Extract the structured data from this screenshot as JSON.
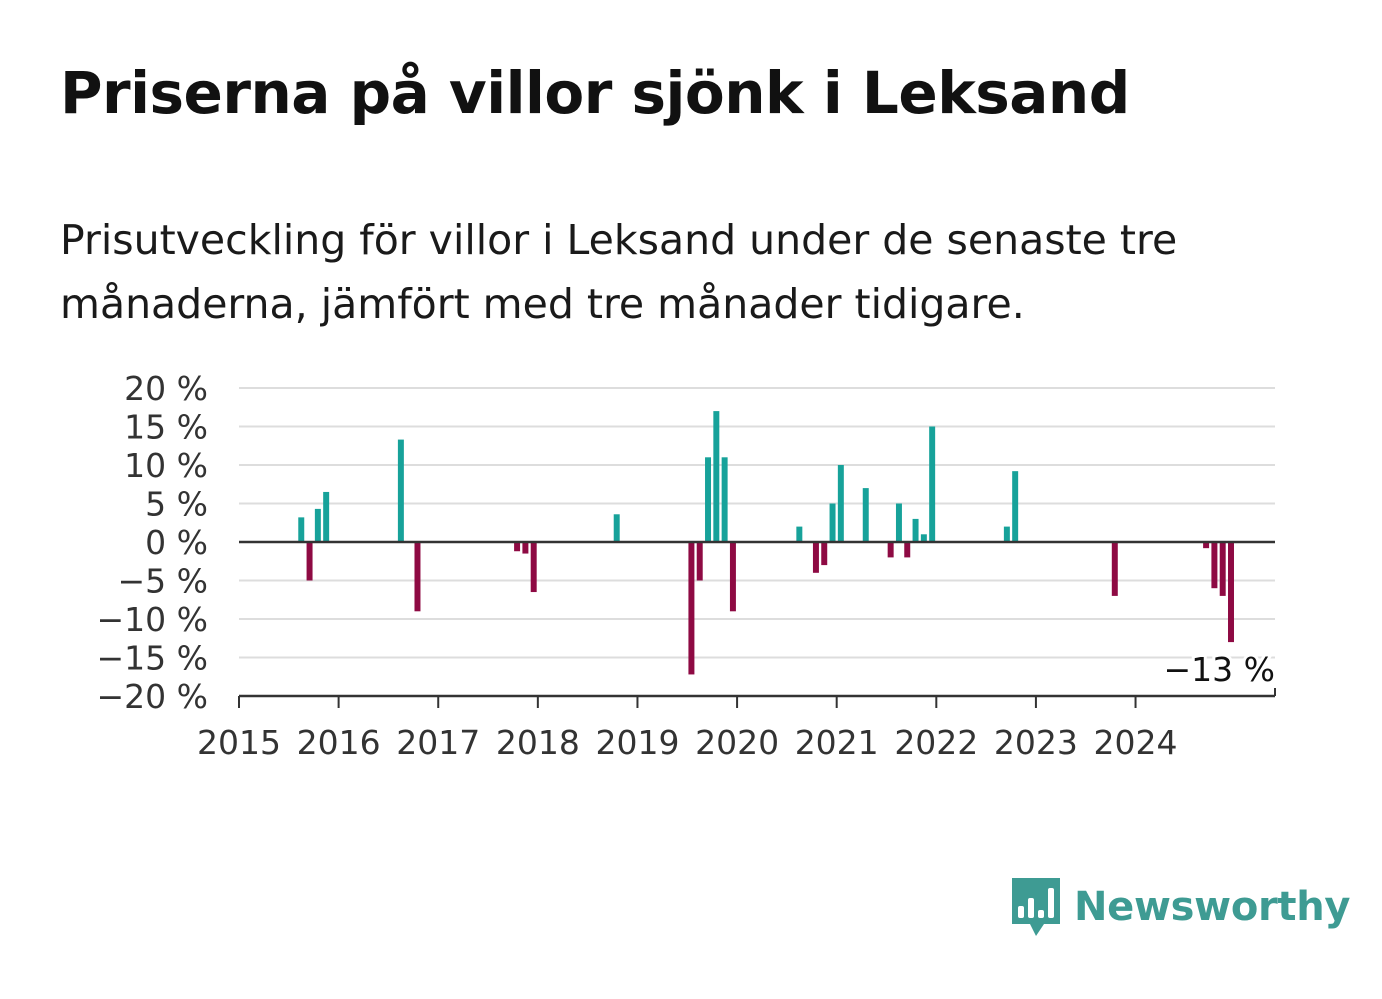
{
  "title": "Priserna på villor sjönk i Leksand",
  "subtitle": "Prisutveckling för villor i Leksand under de senaste tre månaderna, jämfört med tre månader tidigare.",
  "brand": {
    "name": "Newsworthy",
    "icon": "newsworthy-bar-chart-icon"
  },
  "colors": {
    "positive": "#17a29a",
    "negative": "#8e0a43",
    "grid": "#dddddd",
    "axis": "#333333"
  },
  "chart_data": {
    "type": "bar",
    "title": "",
    "xlabel": "",
    "ylabel": "",
    "ylim": [
      -20,
      20
    ],
    "xlim": [
      2015,
      2025.4
    ],
    "yticks": [
      20,
      15,
      10,
      5,
      0,
      -5,
      -10,
      -15,
      -20
    ],
    "ytick_labels": [
      "20 %",
      "15 %",
      "10 %",
      "5 %",
      "0 %",
      "−5 %",
      "−10 %",
      "−15 %",
      "−20 %"
    ],
    "xticks": [
      "2015",
      "2016",
      "2017",
      "2018",
      "2019",
      "2020",
      "2021",
      "2022",
      "2023",
      "2024"
    ],
    "grid": true,
    "annotation": {
      "text": "−13 %",
      "x": "2024-11",
      "value": -13
    },
    "x": [
      "2015-08",
      "2015-09",
      "2015-10",
      "2015-11",
      "2016-08",
      "2016-10",
      "2017-10",
      "2017-11",
      "2017-12",
      "2018-10",
      "2019-07",
      "2019-08",
      "2019-09",
      "2019-10",
      "2019-11",
      "2019-12",
      "2020-08",
      "2020-10",
      "2020-11",
      "2020-12",
      "2021-01",
      "2021-04",
      "2021-07",
      "2021-08",
      "2021-09",
      "2021-10",
      "2021-11",
      "2021-12",
      "2022-09",
      "2022-10",
      "2023-10",
      "2024-09",
      "2024-10",
      "2024-11",
      "2024-12"
    ],
    "values": [
      3.2,
      -5,
      4.3,
      6.5,
      13.3,
      -9,
      -1.2,
      -1.5,
      -6.5,
      3.6,
      -17.2,
      -5,
      11,
      17,
      11,
      -9,
      2,
      -4,
      -3,
      5,
      10,
      7,
      -2,
      5,
      -2,
      3,
      1,
      15,
      2,
      9.2,
      -7,
      -0.8,
      -6,
      -7,
      -13
    ]
  }
}
